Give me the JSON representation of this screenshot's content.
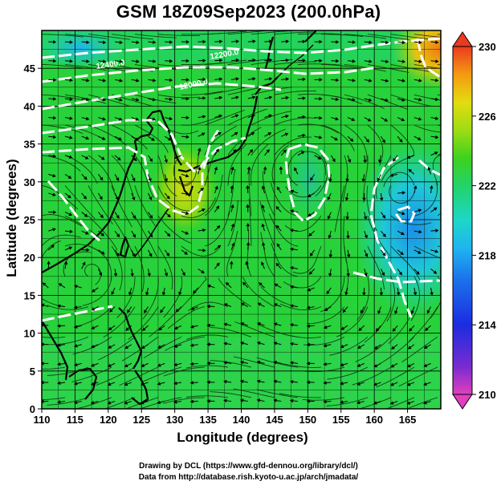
{
  "title": "GSM 18Z09Sep2023 (200.0hPa)",
  "x_axis": {
    "label": "Longitude (degrees)",
    "ticks": [
      "110",
      "115",
      "120",
      "125",
      "130",
      "135",
      "140",
      "145",
      "150",
      "155",
      "160",
      "165"
    ]
  },
  "y_axis": {
    "label": "Latitude  (degrees)",
    "ticks": [
      "0",
      "5",
      "10",
      "15",
      "20",
      "25",
      "30",
      "35",
      "40",
      "45"
    ]
  },
  "colorbar": {
    "ticks": [
      "210",
      "214",
      "218",
      "222",
      "226",
      "230"
    ]
  },
  "contour_labels": [
    "12400.0",
    "12200.0",
    "12000.0"
  ],
  "credits": {
    "line1": "Drawing by DCL (https://www.gfd-dennou.org/library/dcl/)",
    "line2": "Data from http://database.rish.kyoto-u.ac.jp/arch/jmadata/"
  },
  "chart_data": {
    "type": "heatmap",
    "title": "GSM 18Z09Sep2023 (200.0hPa)",
    "xlabel": "Longitude (degrees)",
    "ylabel": "Latitude  (degrees)",
    "xlim": [
      110,
      170
    ],
    "ylim": [
      0,
      50
    ],
    "xticks": [
      110,
      115,
      120,
      125,
      130,
      135,
      140,
      145,
      150,
      155,
      160,
      165
    ],
    "yticks": [
      0,
      5,
      10,
      15,
      20,
      25,
      30,
      35,
      40,
      45
    ],
    "colorbar_range": [
      210,
      230
    ],
    "colorbar_ticks": [
      210,
      214,
      218,
      222,
      226,
      230
    ],
    "colormap": [
      "#e03fbf",
      "#4b2bd0",
      "#1b4fe0",
      "#1fa0f0",
      "#1ed7c8",
      "#22d37a",
      "#3ed21e",
      "#9fdc12",
      "#e3dc10",
      "#f59a10",
      "#ea3a20"
    ],
    "field_color": "#22d33a",
    "contour_color": "#ffffff",
    "vector_color": "#000000",
    "grid": true,
    "overlays": [
      "coastlines",
      "streamlines",
      "wind vectors",
      "white contours"
    ],
    "contour_labels": [
      "12400.0",
      "12200.0",
      "12000.0"
    ],
    "features": [
      {
        "name": "warm anomaly",
        "lon": 131,
        "lat": 31,
        "value": 224
      },
      {
        "name": "warm anomaly",
        "lon": 168,
        "lat": 48,
        "value": 227
      },
      {
        "name": "cool anomaly",
        "lon": 164,
        "lat": 29,
        "value": 219
      },
      {
        "name": "cool anomaly",
        "lon": 115,
        "lat": 48,
        "value": 219
      }
    ]
  }
}
